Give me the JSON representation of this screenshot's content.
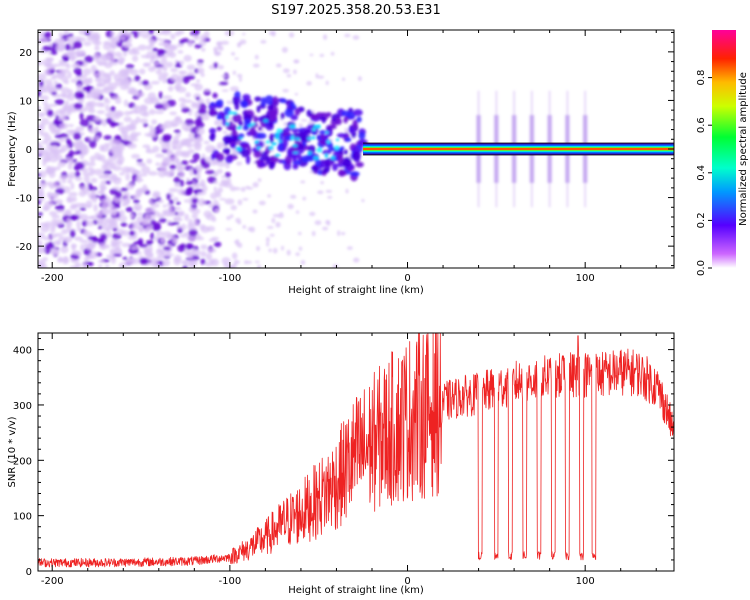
{
  "figure_title": "S197.2025.358.20.53.E31",
  "colors": {
    "snr_line": "#ee2222",
    "spec_base": "#6a0cd6",
    "spec_light": "#d9c2f5",
    "axis": "#000000"
  },
  "chart_data": [
    {
      "id": "spectrogram",
      "type": "heatmap",
      "title": "",
      "xlabel": "Height of straight line (km)",
      "ylabel": "Frequency (Hz)",
      "xlim": [
        -208,
        150
      ],
      "ylim": [
        -24.5,
        24.5
      ],
      "x_ticks": [
        -200,
        -100,
        0,
        100
      ],
      "y_ticks": [
        -20,
        -10,
        0,
        10,
        20
      ],
      "x_tick_labels": [
        "-200",
        "-100",
        "0",
        "100"
      ],
      "y_tick_labels": [
        "-20",
        "-10",
        "0",
        "10",
        "20"
      ],
      "colorbar": {
        "label": "Normalized spectral amplitude",
        "range": [
          0,
          1
        ],
        "ticks": [
          0.0,
          0.2,
          0.4,
          0.6,
          0.8
        ],
        "tick_labels": [
          "0.0",
          "0.2",
          "0.4",
          "0.6",
          "0.8"
        ],
        "colormap": [
          "#ffffff",
          "#cc44ff",
          "#3300ff",
          "#00ccff",
          "#00ff66",
          "#ccff00",
          "#ffcc00",
          "#ff3300",
          "#ff0099"
        ]
      },
      "features": {
        "noise_region_km": [
          -208,
          -110
        ],
        "transition_region_km": [
          -110,
          -25
        ],
        "carrier_frequency_hz": 0,
        "carrier_start_km": -25,
        "carrier_pulses_km": [
          40,
          50,
          60,
          70,
          80,
          90,
          100
        ]
      }
    },
    {
      "id": "snr",
      "type": "line",
      "title": "",
      "xlabel": "Height of straight line (km)",
      "ylabel": "SNR (10 * v/v)",
      "xlim": [
        -208,
        150
      ],
      "ylim": [
        0,
        430
      ],
      "x_ticks": [
        -200,
        -100,
        0,
        100
      ],
      "y_ticks": [
        0,
        100,
        200,
        300,
        400
      ],
      "x_tick_labels": [
        "-200",
        "-100",
        "0",
        "100"
      ],
      "y_tick_labels": [
        "0",
        "100",
        "200",
        "300",
        "400"
      ],
      "series": [
        {
          "name": "SNR",
          "x": [
            -208,
            -180,
            -150,
            -120,
            -100,
            -90,
            -80,
            -70,
            -60,
            -50,
            -40,
            -30,
            -20,
            -10,
            0,
            10,
            20,
            30,
            40,
            50,
            60,
            70,
            80,
            90,
            100,
            110,
            120,
            130,
            140,
            145,
            150
          ],
          "values": [
            15,
            15,
            16,
            18,
            25,
            40,
            60,
            85,
            105,
            130,
            160,
            205,
            230,
            255,
            275,
            290,
            305,
            315,
            320,
            330,
            340,
            345,
            350,
            355,
            355,
            355,
            360,
            358,
            335,
            300,
            250
          ],
          "dropouts_km": [
            41,
            50,
            58,
            66,
            74,
            82,
            90,
            98,
            105
          ],
          "dropout_level": 20,
          "peak": {
            "x": 96,
            "y": 425
          }
        }
      ]
    }
  ]
}
